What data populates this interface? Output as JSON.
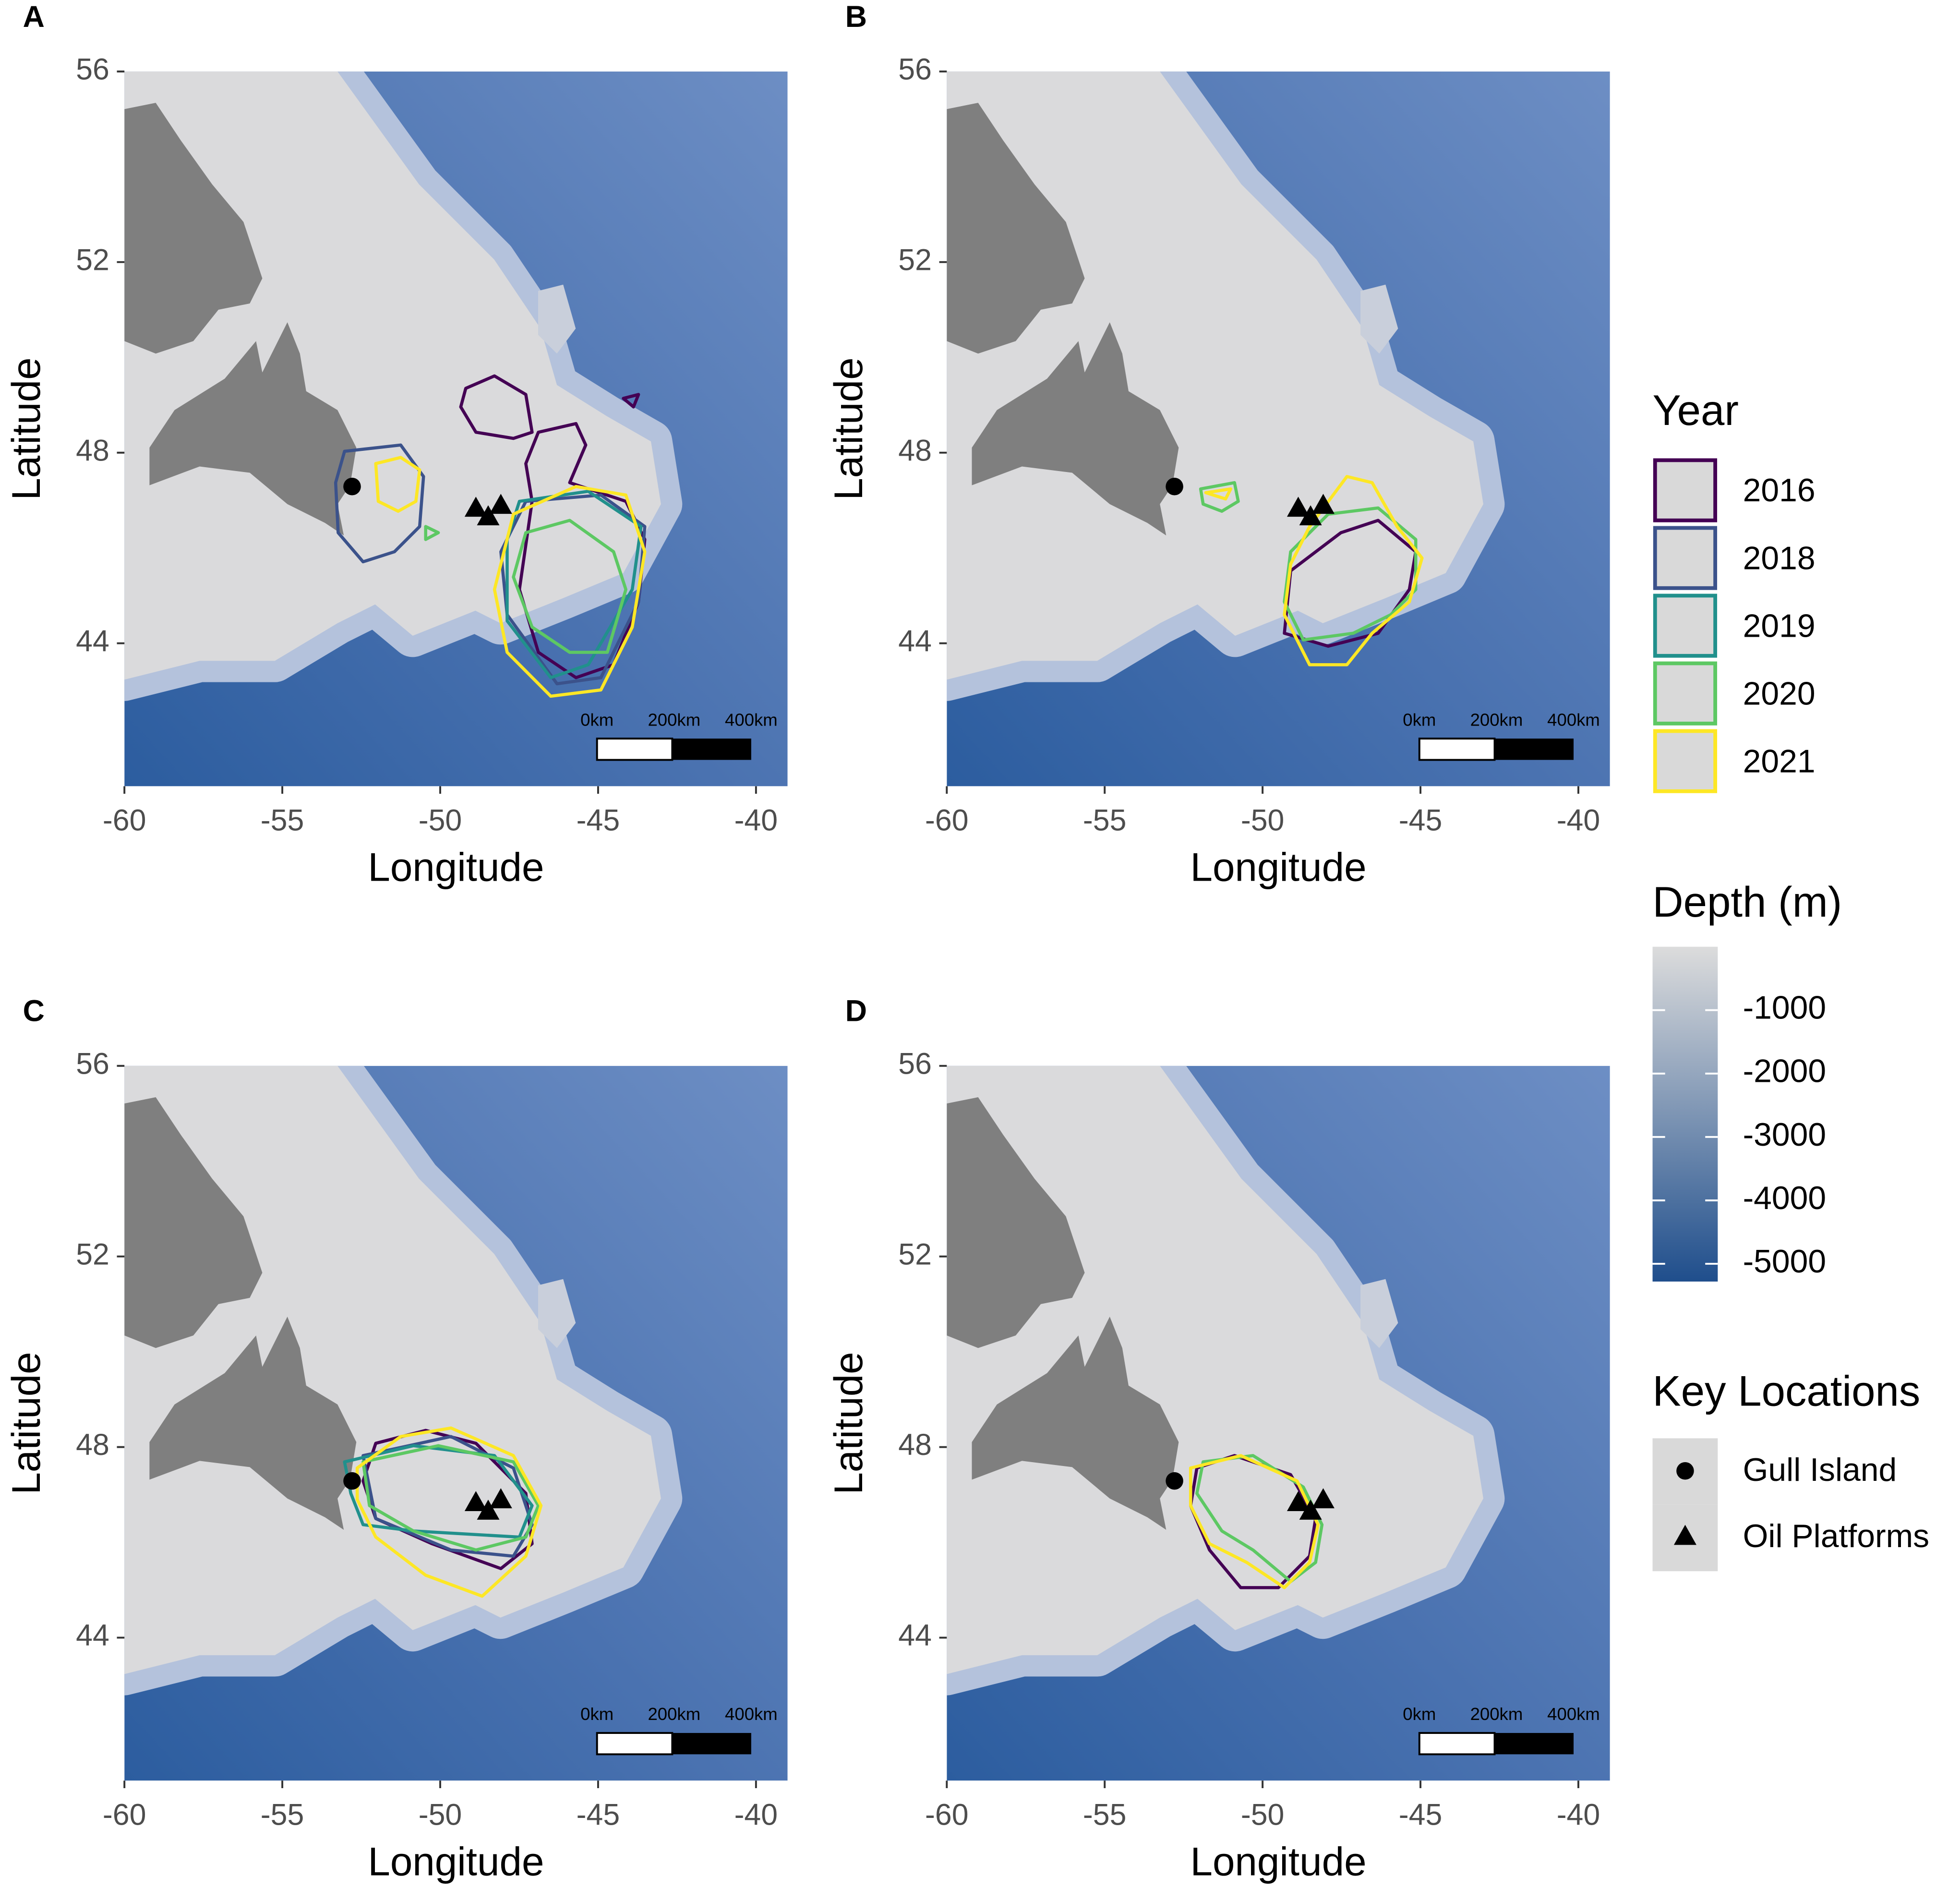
{
  "chart_data": [
    {
      "type": "map",
      "label": "A",
      "xlabel": "Longitude",
      "ylabel": "Latitude",
      "xlim": [
        -60,
        -39
      ],
      "ylim": [
        41,
        56
      ],
      "xticks": [
        -60,
        -55,
        -50,
        -45,
        -40
      ],
      "yticks": [
        44,
        48,
        52,
        56
      ],
      "series": [
        {
          "name": "2016",
          "x": [
            -49.19,
            -48.28,
            -47.29,
            -47.09,
            -47.68,
            -48.87,
            -49.35,
            null,
            -44.2,
            -43.72,
            -43.88,
            null,
            -46.89,
            -45.7,
            -45.39,
            -45.9,
            -44.12,
            -43.52,
            -43.72,
            -44.51,
            -45.7,
            -46.89,
            -47.49,
            -47.09,
            -47.29
          ],
          "y": [
            49.35,
            49.61,
            49.22,
            48.43,
            48.3,
            48.43,
            48.96,
            null,
            49.14,
            49.22,
            48.96,
            null,
            48.43,
            48.61,
            48.16,
            47.37,
            46.98,
            46.18,
            44.87,
            43.55,
            43.28,
            43.81,
            45.13,
            46.98,
            47.77
          ]
        },
        {
          "name": "2018",
          "x": [
            -53.03,
            -51.25,
            -50.53,
            -50.65,
            -51.45,
            -52.44,
            -53.23,
            -53.31,
            null,
            -47.29,
            -44.91,
            -43.52,
            -43.72,
            -44.91,
            -46.3,
            -47.88,
            -48.08
          ],
          "y": [
            48.03,
            48.16,
            47.5,
            46.45,
            45.92,
            45.71,
            46.32,
            47.37,
            null,
            46.98,
            47.11,
            46.45,
            44.87,
            43.28,
            43.15,
            44.6,
            45.92
          ]
        },
        {
          "name": "2019",
          "x": [
            -47.49,
            -45.31,
            -43.64,
            -43.92,
            -45.31,
            -46.5,
            -47.88,
            -47.88
          ],
          "y": [
            46.98,
            47.19,
            46.45,
            45.13,
            43.55,
            43.28,
            44.47,
            46.18
          ]
        },
        {
          "name": "2020",
          "x": [
            -50.46,
            -50.06,
            -50.46,
            null,
            -47.29,
            -45.9,
            -44.51,
            -44.12,
            -44.71,
            -45.9,
            -47.09,
            -47.68
          ],
          "y": [
            46.45,
            46.32,
            46.18,
            null,
            46.32,
            46.58,
            45.92,
            45.13,
            43.81,
            43.81,
            44.34,
            45.39
          ]
        },
        {
          "name": "2021",
          "x": [
            -52.04,
            -51.25,
            -50.65,
            -50.77,
            -51.33,
            -51.96,
            null,
            -47.68,
            -45.7,
            -44.12,
            -43.52,
            -43.92,
            -44.91,
            -46.5,
            -47.88,
            -48.28
          ],
          "y": [
            47.77,
            47.9,
            47.64,
            46.98,
            46.77,
            46.98,
            null,
            46.71,
            47.29,
            47.11,
            45.92,
            44.34,
            43.02,
            42.89,
            43.81,
            45.13
          ]
        }
      ]
    },
    {
      "type": "map",
      "label": "B",
      "xlabel": "Longitude",
      "ylabel": "Latitude",
      "xlim": [
        -60,
        -39
      ],
      "ylim": [
        41,
        56
      ],
      "xticks": [
        -60,
        -55,
        -50,
        -45,
        -40
      ],
      "yticks": [
        44,
        48,
        52,
        56
      ],
      "series": [
        {
          "name": "2016",
          "x": [
            -49.11,
            -47.52,
            -46.34,
            -45.15,
            -45.35,
            -46.34,
            -47.92,
            -49.31
          ],
          "y": [
            45.52,
            46.32,
            46.58,
            45.92,
            45.13,
            44.21,
            43.94,
            44.21
          ]
        },
        {
          "name": "2020",
          "x": [
            -51.96,
            -50.89,
            -50.77,
            -51.29,
            -51.88,
            null,
            -49.11,
            -47.92,
            -46.34,
            -45.15,
            -45.15,
            -45.94,
            -47.13,
            -48.71,
            -49.31
          ],
          "y": [
            47.24,
            47.37,
            46.98,
            46.77,
            46.92,
            null,
            45.92,
            46.71,
            46.84,
            46.18,
            45.13,
            44.6,
            44.21,
            44.07,
            44.87
          ]
        },
        {
          "name": "2021",
          "x": [
            -51.8,
            -51.01,
            -51.17,
            null,
            -48.51,
            -47.33,
            -46.53,
            -45.74,
            -44.95,
            -45.35,
            -46.53,
            -47.33,
            -48.51,
            -49.31,
            -49.11
          ],
          "y": [
            47.16,
            47.24,
            47.03,
            null,
            46.45,
            47.5,
            47.37,
            46.45,
            45.79,
            44.87,
            44.21,
            43.55,
            43.55,
            44.6,
            45.66
          ]
        }
      ]
    },
    {
      "type": "map",
      "label": "C",
      "xlabel": "Longitude",
      "ylabel": "Latitude",
      "xlim": [
        -60,
        -39
      ],
      "ylim": [
        41,
        56
      ],
      "xticks": [
        -60,
        -55,
        -50,
        -45,
        -40
      ],
      "yticks": [
        44,
        48,
        52,
        56
      ],
      "series": [
        {
          "name": "2016",
          "x": [
            -52.04,
            -50.46,
            -48.87,
            -47.29,
            -47.09,
            -48.08,
            -50.26,
            -52.04,
            -52.44
          ],
          "y": [
            48.08,
            48.35,
            48.08,
            47.03,
            45.97,
            45.45,
            45.97,
            46.5,
            47.29
          ]
        },
        {
          "name": "2018",
          "x": [
            -52.44,
            -49.66,
            -47.68,
            -47.09,
            -47.68,
            -49.66,
            -52.04
          ],
          "y": [
            47.82,
            48.22,
            47.56,
            46.37,
            45.71,
            45.84,
            46.5
          ]
        },
        {
          "name": "2019",
          "x": [
            -53.03,
            -50.85,
            -48.28,
            -47.09,
            -47.49,
            -49.27,
            -50.85,
            -52.44,
            -52.83
          ],
          "y": [
            47.69,
            48.03,
            47.82,
            46.77,
            46.11,
            46.18,
            46.24,
            46.37,
            47.03
          ]
        },
        {
          "name": "2020",
          "x": [
            -52.44,
            -50.06,
            -47.68,
            -46.89,
            -47.29,
            -48.87,
            -50.85,
            -52.24
          ],
          "y": [
            47.69,
            48.03,
            47.69,
            46.77,
            46.11,
            45.84,
            46.24,
            46.77
          ]
        },
        {
          "name": "2021",
          "x": [
            -52.63,
            -51.25,
            -49.66,
            -47.68,
            -46.81,
            -47.29,
            -48.67,
            -50.46,
            -52.04,
            -52.63
          ],
          "y": [
            47.56,
            48.22,
            48.4,
            47.82,
            46.77,
            45.71,
            44.87,
            45.31,
            46.11,
            46.9
          ]
        }
      ]
    },
    {
      "type": "map",
      "label": "D",
      "xlabel": "Longitude",
      "ylabel": "Latitude",
      "xlim": [
        -60,
        -39
      ],
      "ylim": [
        41,
        56
      ],
      "xticks": [
        -60,
        -55,
        -50,
        -45,
        -40
      ],
      "yticks": [
        44,
        48,
        52,
        56
      ],
      "series": [
        {
          "name": "2016",
          "x": [
            -52.08,
            -50.89,
            -49.11,
            -48.32,
            -48.51,
            -49.5,
            -50.69,
            -51.68,
            -52.28
          ],
          "y": [
            47.56,
            47.82,
            47.42,
            46.5,
            45.71,
            45.05,
            45.05,
            45.84,
            46.77
          ]
        },
        {
          "name": "2020",
          "x": [
            -51.88,
            -50.3,
            -48.71,
            -48.12,
            -48.32,
            -49.11,
            -50.3,
            -51.29,
            -52.08
          ],
          "y": [
            47.69,
            47.82,
            47.16,
            46.37,
            45.58,
            45.18,
            45.84,
            46.24,
            47.03
          ]
        },
        {
          "name": "2021",
          "x": [
            -52.28,
            -50.69,
            -48.91,
            -48.24,
            -48.51,
            -49.31,
            -50.5,
            -51.68,
            -52.28
          ],
          "y": [
            47.56,
            47.82,
            47.29,
            46.37,
            45.58,
            45.05,
            45.58,
            45.97,
            46.77
          ]
        }
      ]
    }
  ],
  "key_locations": {
    "gull_island": {
      "x": -52.79,
      "y": 47.29
    },
    "oil_platforms": {
      "x": [
        -48.87,
        -48.48,
        -48.08
      ],
      "y": [
        46.84,
        46.66,
        46.9
      ]
    }
  },
  "scale_bar": [
    "0km",
    "200km",
    "400km"
  ],
  "legend": {
    "year_title": "Year",
    "years": [
      {
        "name": "2016",
        "color": "#440154"
      },
      {
        "name": "2018",
        "color": "#3b528b"
      },
      {
        "name": "2019",
        "color": "#21908c"
      },
      {
        "name": "2020",
        "color": "#5dc863"
      },
      {
        "name": "2021",
        "color": "#fde725"
      }
    ],
    "depth_title": "Depth (m)",
    "depth_ticks": [
      -1000,
      -2000,
      -3000,
      -4000,
      -5000
    ],
    "depth_lim": [
      -5280,
      0
    ],
    "depth_colors": [
      "#1f4e8c",
      "#dcdcdc"
    ],
    "locations_title": "Key Locations",
    "locations": [
      "Gull Island",
      "Oil Platforms"
    ]
  }
}
